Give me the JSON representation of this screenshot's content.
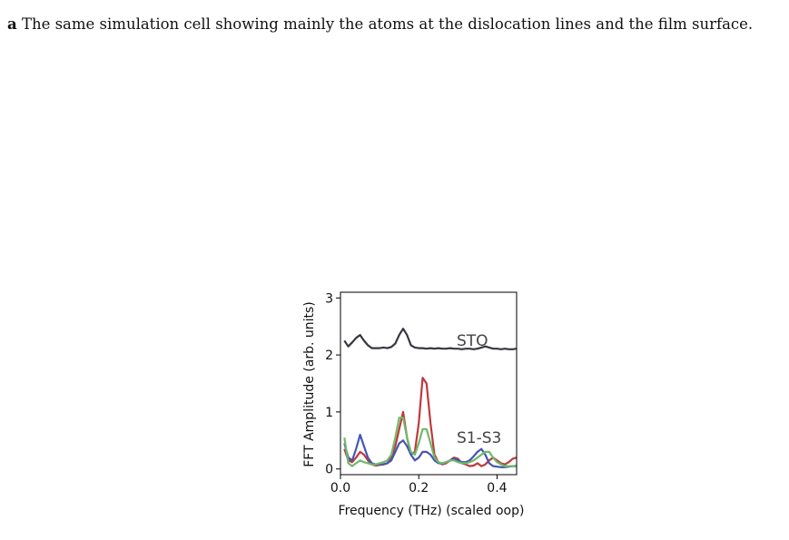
{
  "caption": {
    "label": "a",
    "text": "The same simulation cell showing mainly the atoms at the dislocation lines and the film surface."
  },
  "chart_data": {
    "type": "line",
    "xlabel": "Frequency (THz) (scaled oop)",
    "ylabel": "FFT Amplitude (arb. units)",
    "xlim": [
      0.0,
      0.45
    ],
    "ylim": [
      -0.1,
      3.1
    ],
    "xticks": [
      "0.0",
      "0.2",
      "0.4"
    ],
    "yticks": [
      "0",
      "1",
      "2",
      "3"
    ],
    "grid": false,
    "annotations": [
      "STO",
      "S1-S3"
    ],
    "series": [
      {
        "color": "#3a3540",
        "x": [
          0.01,
          0.02,
          0.03,
          0.04,
          0.05,
          0.06,
          0.07,
          0.08,
          0.09,
          0.1,
          0.11,
          0.12,
          0.13,
          0.14,
          0.15,
          0.16,
          0.17,
          0.18,
          0.19,
          0.2,
          0.21,
          0.22,
          0.23,
          0.24,
          0.25,
          0.26,
          0.27,
          0.28,
          0.29,
          0.3,
          0.31,
          0.32,
          0.33,
          0.34,
          0.35,
          0.36,
          0.37,
          0.38,
          0.39,
          0.4,
          0.41,
          0.42,
          0.43,
          0.44,
          0.45
        ],
        "values": [
          2.25,
          2.15,
          2.22,
          2.3,
          2.35,
          2.25,
          2.17,
          2.12,
          2.12,
          2.12,
          2.13,
          2.12,
          2.14,
          2.2,
          2.35,
          2.46,
          2.35,
          2.17,
          2.13,
          2.12,
          2.12,
          2.11,
          2.12,
          2.11,
          2.12,
          2.11,
          2.11,
          2.12,
          2.11,
          2.11,
          2.1,
          2.11,
          2.11,
          2.1,
          2.11,
          2.13,
          2.15,
          2.13,
          2.11,
          2.11,
          2.1,
          2.11,
          2.1,
          2.1,
          2.11
        ]
      },
      {
        "color": "#c0393b",
        "x": [
          0.01,
          0.02,
          0.03,
          0.04,
          0.05,
          0.06,
          0.07,
          0.08,
          0.09,
          0.1,
          0.11,
          0.12,
          0.13,
          0.14,
          0.15,
          0.16,
          0.17,
          0.18,
          0.19,
          0.2,
          0.21,
          0.22,
          0.23,
          0.24,
          0.25,
          0.26,
          0.27,
          0.28,
          0.29,
          0.3,
          0.31,
          0.32,
          0.33,
          0.34,
          0.35,
          0.36,
          0.37,
          0.38,
          0.39,
          0.4,
          0.41,
          0.42,
          0.43,
          0.44,
          0.45
        ],
        "values": [
          0.35,
          0.15,
          0.12,
          0.2,
          0.3,
          0.25,
          0.15,
          0.08,
          0.06,
          0.07,
          0.08,
          0.1,
          0.2,
          0.4,
          0.7,
          1.0,
          0.55,
          0.25,
          0.3,
          0.8,
          1.6,
          1.5,
          0.8,
          0.25,
          0.12,
          0.08,
          0.1,
          0.15,
          0.2,
          0.18,
          0.1,
          0.08,
          0.05,
          0.06,
          0.1,
          0.05,
          0.08,
          0.15,
          0.2,
          0.15,
          0.1,
          0.08,
          0.12,
          0.18,
          0.2
        ]
      },
      {
        "color": "#4456b3",
        "x": [
          0.01,
          0.02,
          0.03,
          0.04,
          0.05,
          0.06,
          0.07,
          0.08,
          0.09,
          0.1,
          0.11,
          0.12,
          0.13,
          0.14,
          0.15,
          0.16,
          0.17,
          0.18,
          0.19,
          0.2,
          0.21,
          0.22,
          0.23,
          0.24,
          0.25,
          0.26,
          0.27,
          0.28,
          0.29,
          0.3,
          0.31,
          0.32,
          0.33,
          0.34,
          0.35,
          0.36,
          0.37,
          0.38,
          0.39,
          0.4,
          0.41,
          0.42,
          0.43,
          0.44,
          0.45
        ],
        "values": [
          0.45,
          0.2,
          0.15,
          0.35,
          0.6,
          0.4,
          0.2,
          0.1,
          0.08,
          0.08,
          0.08,
          0.1,
          0.15,
          0.3,
          0.45,
          0.5,
          0.4,
          0.25,
          0.15,
          0.2,
          0.3,
          0.3,
          0.25,
          0.15,
          0.1,
          0.1,
          0.12,
          0.15,
          0.18,
          0.15,
          0.12,
          0.12,
          0.15,
          0.22,
          0.3,
          0.35,
          0.25,
          0.1,
          0.05,
          0.04,
          0.03,
          0.03,
          0.04,
          0.05,
          0.05
        ]
      },
      {
        "color": "#6fb96c",
        "x": [
          0.01,
          0.02,
          0.03,
          0.04,
          0.05,
          0.06,
          0.07,
          0.08,
          0.09,
          0.1,
          0.11,
          0.12,
          0.13,
          0.14,
          0.15,
          0.16,
          0.17,
          0.18,
          0.19,
          0.2,
          0.21,
          0.22,
          0.23,
          0.24,
          0.25,
          0.26,
          0.27,
          0.28,
          0.29,
          0.3,
          0.31,
          0.32,
          0.33,
          0.34,
          0.35,
          0.36,
          0.37,
          0.38,
          0.39,
          0.4,
          0.41,
          0.42,
          0.43,
          0.44,
          0.45
        ],
        "values": [
          0.55,
          0.1,
          0.05,
          0.1,
          0.15,
          0.12,
          0.1,
          0.08,
          0.08,
          0.1,
          0.12,
          0.15,
          0.25,
          0.55,
          0.9,
          0.9,
          0.55,
          0.3,
          0.25,
          0.45,
          0.7,
          0.7,
          0.45,
          0.2,
          0.12,
          0.1,
          0.12,
          0.15,
          0.15,
          0.12,
          0.1,
          0.1,
          0.12,
          0.15,
          0.2,
          0.25,
          0.3,
          0.3,
          0.2,
          0.12,
          0.08,
          0.05,
          0.05,
          0.05,
          0.06
        ]
      }
    ]
  }
}
